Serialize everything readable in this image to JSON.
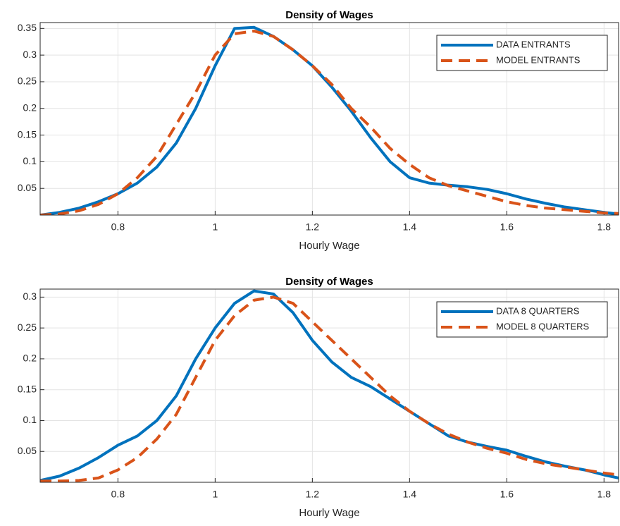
{
  "chart_data": [
    {
      "type": "line",
      "title": "Density of Wages",
      "xlabel": "Hourly Wage",
      "x": [
        0.64,
        0.68,
        0.72,
        0.76,
        0.8,
        0.84,
        0.88,
        0.92,
        0.96,
        1.0,
        1.04,
        1.08,
        1.12,
        1.16,
        1.2,
        1.24,
        1.28,
        1.32,
        1.36,
        1.4,
        1.44,
        1.48,
        1.52,
        1.56,
        1.6,
        1.64,
        1.68,
        1.72,
        1.76,
        1.8,
        1.83
      ],
      "series": [
        {
          "name": "DATA ENTRANTS",
          "color": "#0072bd",
          "dash": false,
          "values": [
            0,
            0.005,
            0.013,
            0.025,
            0.04,
            0.06,
            0.09,
            0.135,
            0.2,
            0.28,
            0.35,
            0.352,
            0.335,
            0.31,
            0.28,
            0.24,
            0.195,
            0.145,
            0.1,
            0.07,
            0.06,
            0.056,
            0.053,
            0.048,
            0.04,
            0.03,
            0.022,
            0.015,
            0.01,
            0.005,
            0.002
          ]
        },
        {
          "name": "MODEL ENTRANTS",
          "color": "#d95319",
          "dash": true,
          "values": [
            0,
            0.002,
            0.008,
            0.02,
            0.04,
            0.07,
            0.11,
            0.17,
            0.23,
            0.3,
            0.34,
            0.345,
            0.335,
            0.31,
            0.28,
            0.245,
            0.2,
            0.165,
            0.125,
            0.095,
            0.07,
            0.055,
            0.045,
            0.035,
            0.025,
            0.018,
            0.013,
            0.01,
            0.007,
            0.004,
            0.003
          ]
        }
      ],
      "xlim": [
        0.64,
        1.83
      ],
      "xticks": [
        0.8,
        1,
        1.2,
        1.4,
        1.6,
        1.8
      ],
      "ylim": [
        0,
        0.361
      ],
      "yticks": [
        0.05,
        0.1,
        0.15,
        0.2,
        0.25,
        0.3,
        0.35
      ],
      "grid": true,
      "legend": "top-right"
    },
    {
      "type": "line",
      "title": "Density of Wages",
      "xlabel": "Hourly Wage",
      "x": [
        0.64,
        0.68,
        0.72,
        0.76,
        0.8,
        0.84,
        0.88,
        0.92,
        0.96,
        1.0,
        1.04,
        1.08,
        1.12,
        1.16,
        1.2,
        1.24,
        1.28,
        1.32,
        1.36,
        1.4,
        1.44,
        1.48,
        1.52,
        1.56,
        1.6,
        1.64,
        1.68,
        1.72,
        1.76,
        1.8,
        1.83
      ],
      "series": [
        {
          "name": "DATA 8 QUARTERS",
          "color": "#0072bd",
          "dash": false,
          "values": [
            0.003,
            0.01,
            0.023,
            0.04,
            0.06,
            0.075,
            0.1,
            0.14,
            0.2,
            0.25,
            0.29,
            0.31,
            0.305,
            0.275,
            0.23,
            0.195,
            0.17,
            0.155,
            0.135,
            0.115,
            0.095,
            0.075,
            0.065,
            0.058,
            0.052,
            0.042,
            0.033,
            0.026,
            0.02,
            0.012,
            0.007
          ]
        },
        {
          "name": "MODEL 8 QUARTERS",
          "color": "#d95319",
          "dash": true,
          "values": [
            0.002,
            0.002,
            0.003,
            0.007,
            0.02,
            0.04,
            0.07,
            0.11,
            0.17,
            0.23,
            0.27,
            0.295,
            0.3,
            0.29,
            0.26,
            0.23,
            0.2,
            0.17,
            0.14,
            0.115,
            0.095,
            0.078,
            0.065,
            0.055,
            0.047,
            0.037,
            0.03,
            0.025,
            0.02,
            0.015,
            0.012
          ]
        }
      ],
      "xlim": [
        0.64,
        1.83
      ],
      "xticks": [
        0.8,
        1,
        1.2,
        1.4,
        1.6,
        1.8
      ],
      "ylim": [
        0,
        0.313
      ],
      "yticks": [
        0.05,
        0.1,
        0.15,
        0.2,
        0.25,
        0.3
      ],
      "grid": true,
      "legend": "top-right"
    }
  ]
}
